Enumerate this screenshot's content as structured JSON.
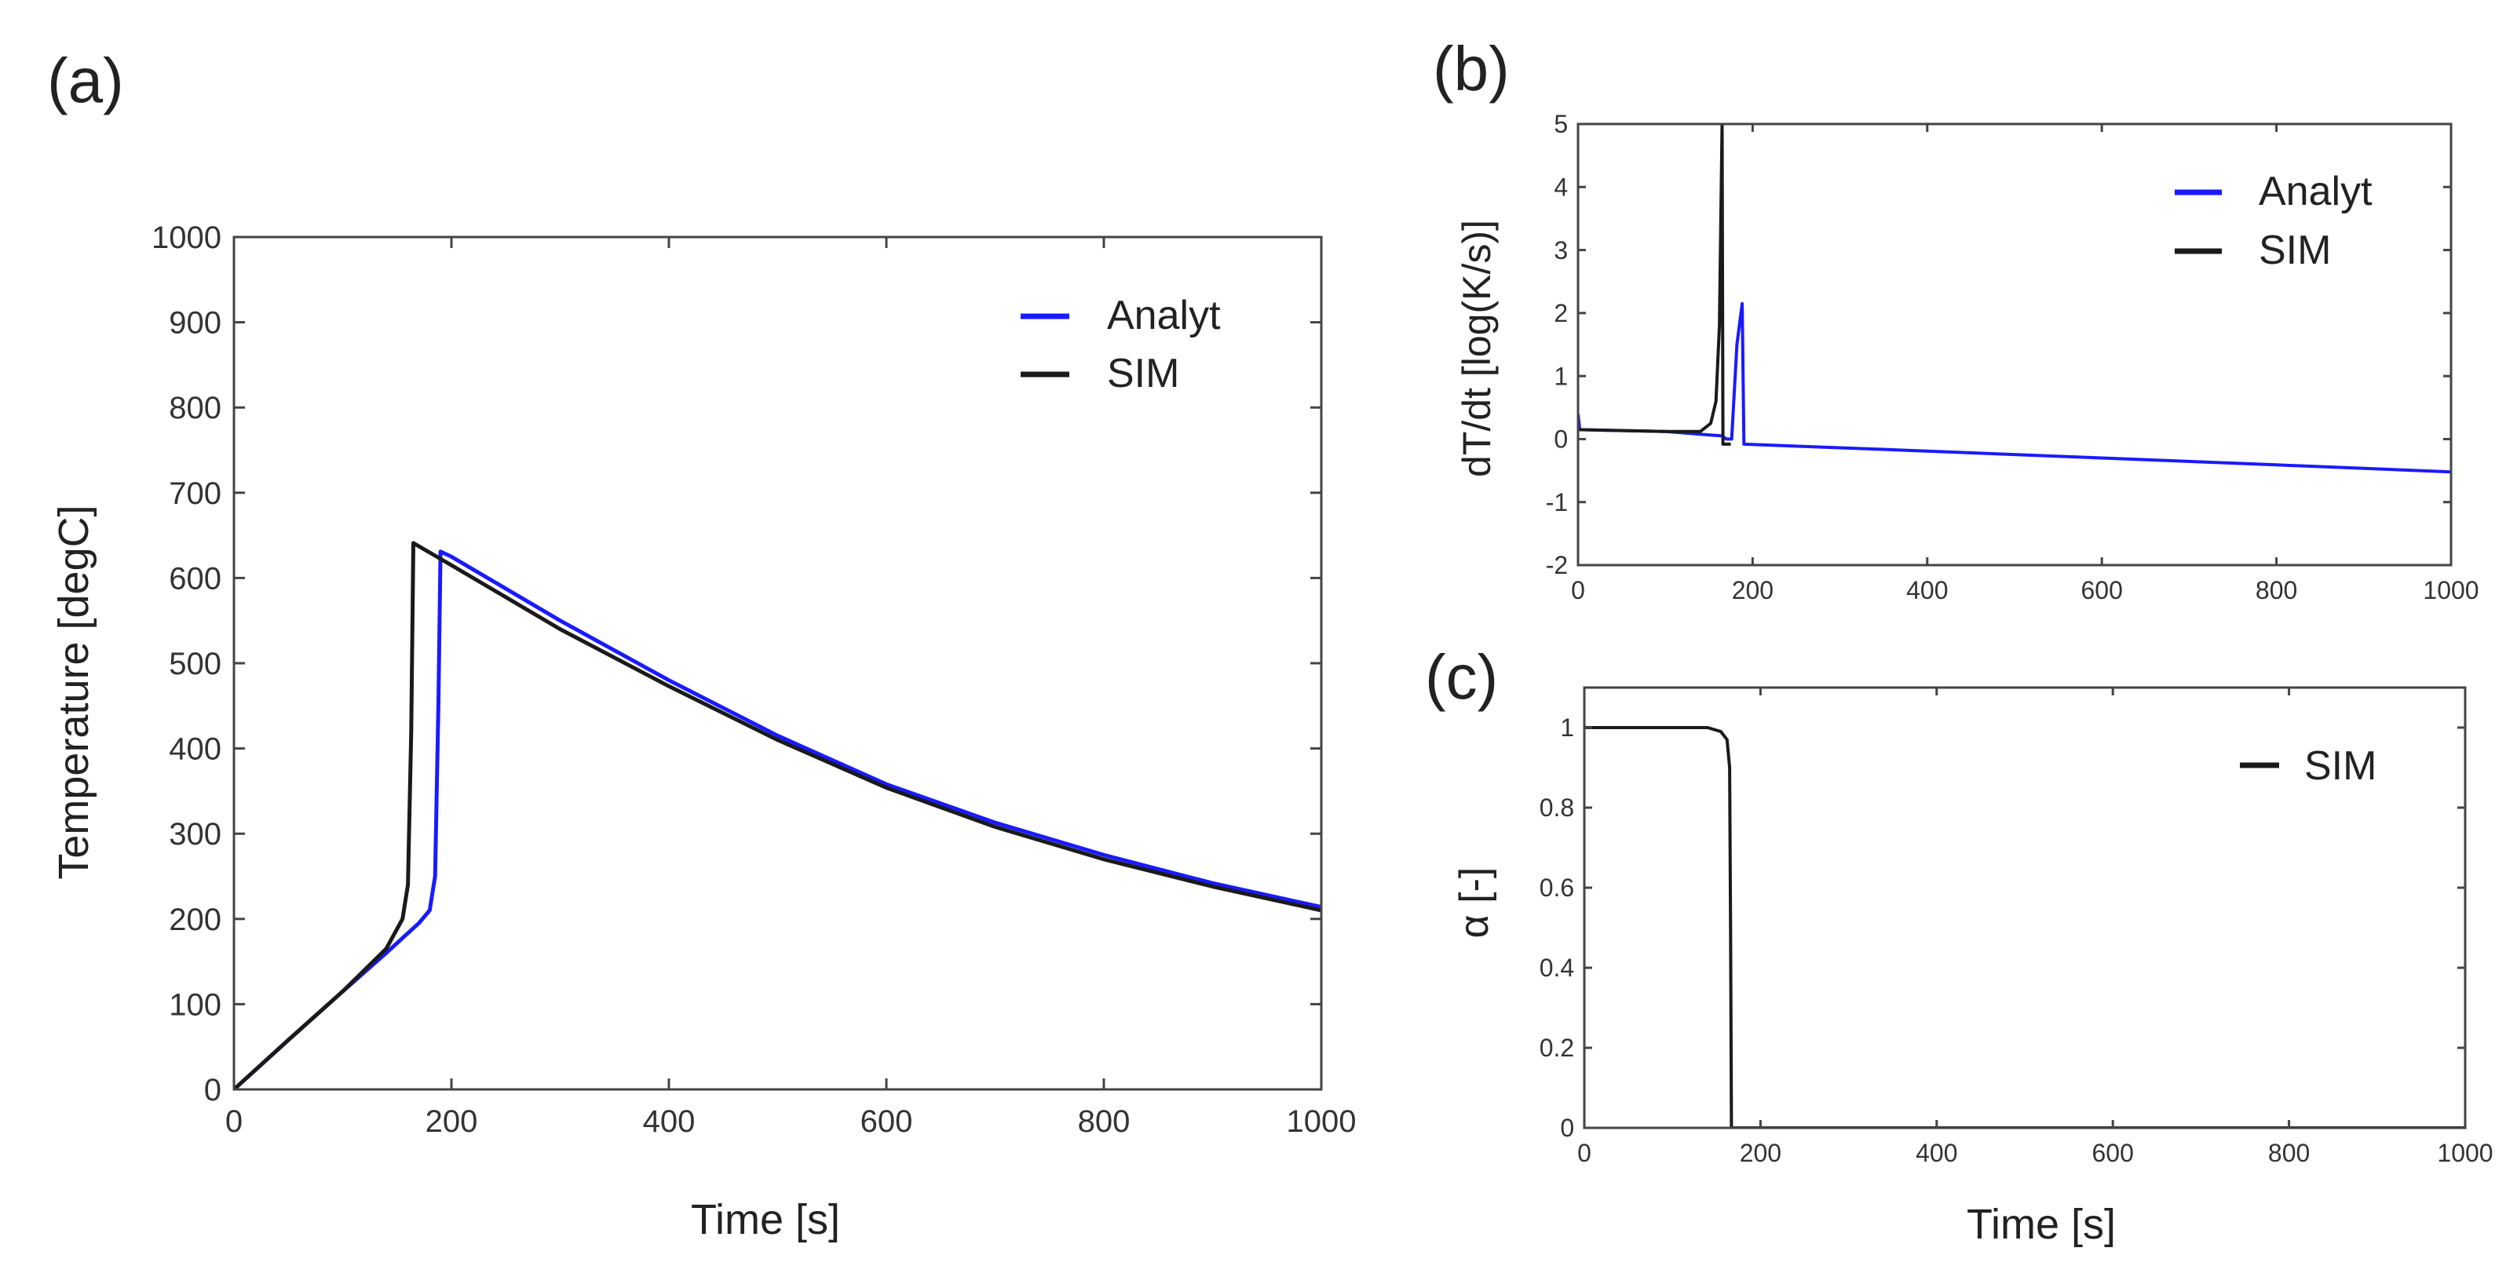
{
  "chart_data": [
    {
      "panel": "(a)",
      "type": "line",
      "title": "",
      "xlabel": "Time [s]",
      "ylabel": "Temperature [degC]",
      "xlim": [
        0,
        1000
      ],
      "ylim": [
        0,
        1000
      ],
      "xticks": [
        0,
        200,
        400,
        600,
        800,
        1000
      ],
      "yticks": [
        0,
        100,
        200,
        300,
        400,
        500,
        600,
        700,
        800,
        900,
        1000
      ],
      "legend_position": "top-right",
      "series": [
        {
          "name": "Analyt",
          "color": "#1a1aff",
          "points": [
            [
              0,
              0
            ],
            [
              50,
              58
            ],
            [
              100,
              115
            ],
            [
              140,
              160
            ],
            [
              170,
              195
            ],
            [
              180,
              210
            ],
            [
              185,
              250
            ],
            [
              188,
              450
            ],
            [
              190,
              631
            ],
            [
              200,
              625
            ],
            [
              300,
              550
            ],
            [
              400,
              480
            ],
            [
              500,
              415
            ],
            [
              600,
              358
            ],
            [
              700,
              313
            ],
            [
              800,
              275
            ],
            [
              900,
              242
            ],
            [
              1000,
              214
            ]
          ]
        },
        {
          "name": "SIM",
          "color": "#1a1a1a",
          "points": [
            [
              0,
              0
            ],
            [
              50,
              58
            ],
            [
              100,
              115
            ],
            [
              140,
              165
            ],
            [
              155,
              200
            ],
            [
              160,
              240
            ],
            [
              163,
              420
            ],
            [
              165,
              641
            ],
            [
              200,
              615
            ],
            [
              300,
              540
            ],
            [
              400,
              473
            ],
            [
              500,
              410
            ],
            [
              600,
              354
            ],
            [
              700,
              308
            ],
            [
              800,
              270
            ],
            [
              900,
              238
            ],
            [
              1000,
              210
            ]
          ]
        }
      ]
    },
    {
      "panel": "(b)",
      "type": "line",
      "title": "",
      "xlabel": "",
      "ylabel": "dT/dt [log(K/s)]",
      "xlim": [
        0,
        1000
      ],
      "ylim": [
        -2,
        5
      ],
      "xticks": [
        0,
        200,
        400,
        600,
        800,
        1000
      ],
      "yticks": [
        -2,
        -1,
        0,
        1,
        2,
        3,
        4,
        5
      ],
      "legend_position": "top-right",
      "series": [
        {
          "name": "Analyt",
          "color": "#1a1aff",
          "points": [
            [
              0,
              0.4
            ],
            [
              2,
              0.15
            ],
            [
              100,
              0.12
            ],
            [
              165,
              0.05
            ],
            [
              170,
              0.0
            ],
            [
              176,
              0.0
            ],
            [
              182,
              1.5
            ],
            [
              188,
              2.15
            ],
            [
              190,
              -0.08
            ],
            [
              400,
              -0.19
            ],
            [
              600,
              -0.3
            ],
            [
              800,
              -0.41
            ],
            [
              1000,
              -0.52
            ]
          ]
        },
        {
          "name": "SIM",
          "color": "#1a1a1a",
          "points": [
            [
              0,
              0.15
            ],
            [
              100,
              0.12
            ],
            [
              140,
              0.12
            ],
            [
              152,
              0.25
            ],
            [
              158,
              0.6
            ],
            [
              162,
              1.8
            ],
            [
              165,
              5.0
            ],
            [
              166,
              -0.08
            ],
            [
              175,
              -0.08
            ]
          ]
        }
      ]
    },
    {
      "panel": "(c)",
      "type": "line",
      "title": "",
      "xlabel": "Time [s]",
      "ylabel": "α [-]",
      "xlim": [
        0,
        1000
      ],
      "ylim": [
        0,
        1.1
      ],
      "xticks": [
        0,
        200,
        400,
        600,
        800,
        1000
      ],
      "yticks": [
        0,
        0.2,
        0.4,
        0.6,
        0.8,
        1
      ],
      "legend_position": "top-right",
      "series": [
        {
          "name": "SIM",
          "color": "#1a1a1a",
          "points": [
            [
              0,
              1.0
            ],
            [
              140,
              1.0
            ],
            [
              155,
              0.99
            ],
            [
              162,
              0.97
            ],
            [
              165,
              0.9
            ],
            [
              166,
              0.5
            ],
            [
              167,
              0.0
            ],
            [
              1000,
              0.0
            ]
          ]
        }
      ]
    }
  ]
}
